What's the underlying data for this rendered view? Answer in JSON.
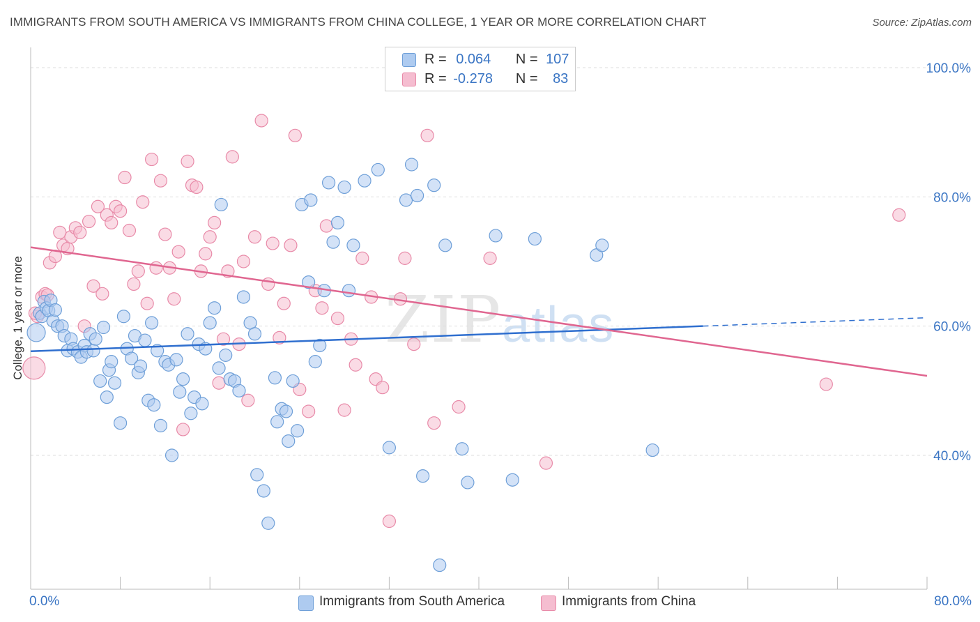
{
  "title": "IMMIGRANTS FROM SOUTH AMERICA VS IMMIGRANTS FROM CHINA COLLEGE, 1 YEAR OR MORE CORRELATION CHART",
  "source": "Source: ZipAtlas.com",
  "watermark": {
    "zip": "ZIP",
    "atlas": "atlas"
  },
  "colors": {
    "blue_fill": "#aecbf0",
    "blue_stroke": "#6e9fd8",
    "blue_line": "#2f6fcf",
    "pink_fill": "#f5bdd0",
    "pink_stroke": "#e88aa8",
    "pink_line": "#e06690",
    "axis_text": "#3a75c4",
    "grid": "#dddddd"
  },
  "legend_box": {
    "rows": [
      {
        "r_label": "R =",
        "r_value": "0.064",
        "n_label": "N =",
        "n_value": "107",
        "color": "#aecbf0"
      },
      {
        "r_label": "R =",
        "r_value": "-0.278",
        "n_label": "N =",
        "n_value": "83",
        "color": "#f5bdd0"
      }
    ]
  },
  "bottom_legend": [
    {
      "label": "Immigrants from South America",
      "color": "#aecbf0"
    },
    {
      "label": "Immigrants from China",
      "color": "#f5bdd0"
    }
  ],
  "chart_data": {
    "type": "scatter",
    "title": "IMMIGRANTS FROM SOUTH AMERICA VS IMMIGRANTS FROM CHINA COLLEGE, 1 YEAR OR MORE CORRELATION CHART",
    "xlabel": "",
    "ylabel": "College, 1 year or more",
    "xlim": [
      0,
      80
    ],
    "ylim": [
      20,
      100
    ],
    "x_tick_labels": [
      "0.0%",
      "80.0%"
    ],
    "y_ticks": [
      40,
      60,
      80,
      100
    ],
    "y_tick_labels": [
      "40.0%",
      "60.0%",
      "80.0%",
      "100.0%"
    ],
    "grid": true,
    "legend": "bottom",
    "series": [
      {
        "name": "Immigrants from South America",
        "color": "#aecbf0",
        "trend": {
          "x": [
            0,
            60
          ],
          "y": [
            56.1,
            60.0
          ],
          "dashed_extension_to": [
            80,
            61.3
          ]
        },
        "points": [
          [
            0.5,
            59.0
          ],
          [
            0.8,
            62.0
          ],
          [
            1.0,
            61.5
          ],
          [
            1.2,
            63.8
          ],
          [
            1.4,
            62.8
          ],
          [
            1.6,
            62.4
          ],
          [
            1.8,
            64.0
          ],
          [
            2.0,
            60.8
          ],
          [
            2.2,
            62.5
          ],
          [
            2.4,
            60.0
          ],
          [
            2.8,
            60.0
          ],
          [
            3.0,
            58.5
          ],
          [
            3.3,
            56.2
          ],
          [
            3.6,
            58.0
          ],
          [
            3.8,
            56.5
          ],
          [
            4.2,
            56.0
          ],
          [
            4.5,
            55.2
          ],
          [
            4.8,
            57.0
          ],
          [
            5.0,
            56.0
          ],
          [
            5.3,
            58.8
          ],
          [
            5.6,
            56.2
          ],
          [
            5.8,
            58.0
          ],
          [
            6.2,
            51.5
          ],
          [
            6.5,
            59.8
          ],
          [
            6.8,
            49.0
          ],
          [
            7.0,
            53.2
          ],
          [
            7.2,
            54.5
          ],
          [
            7.5,
            51.2
          ],
          [
            8.0,
            45.0
          ],
          [
            8.3,
            61.5
          ],
          [
            8.6,
            56.5
          ],
          [
            9.0,
            55.0
          ],
          [
            9.3,
            58.5
          ],
          [
            9.6,
            52.8
          ],
          [
            9.8,
            53.8
          ],
          [
            10.2,
            57.8
          ],
          [
            10.5,
            48.5
          ],
          [
            10.8,
            60.5
          ],
          [
            11.0,
            47.8
          ],
          [
            11.3,
            56.2
          ],
          [
            11.6,
            44.6
          ],
          [
            12.0,
            54.5
          ],
          [
            12.3,
            54.0
          ],
          [
            12.6,
            40.0
          ],
          [
            13.0,
            54.8
          ],
          [
            13.3,
            49.8
          ],
          [
            13.6,
            51.8
          ],
          [
            14.0,
            58.8
          ],
          [
            14.3,
            46.5
          ],
          [
            14.6,
            49.0
          ],
          [
            15.0,
            57.2
          ],
          [
            15.3,
            48.0
          ],
          [
            15.6,
            56.5
          ],
          [
            16.0,
            60.5
          ],
          [
            16.4,
            62.8
          ],
          [
            16.8,
            53.5
          ],
          [
            17.0,
            78.8
          ],
          [
            17.4,
            55.5
          ],
          [
            17.8,
            51.8
          ],
          [
            18.2,
            51.5
          ],
          [
            18.6,
            50.0
          ],
          [
            19.0,
            64.5
          ],
          [
            19.6,
            60.5
          ],
          [
            20.0,
            58.8
          ],
          [
            20.2,
            37.0
          ],
          [
            20.8,
            34.5
          ],
          [
            21.2,
            29.5
          ],
          [
            21.8,
            52.0
          ],
          [
            22.0,
            45.2
          ],
          [
            22.4,
            47.2
          ],
          [
            22.8,
            46.8
          ],
          [
            23.0,
            42.2
          ],
          [
            23.4,
            51.5
          ],
          [
            23.8,
            43.8
          ],
          [
            24.2,
            78.8
          ],
          [
            24.8,
            66.8
          ],
          [
            25.0,
            79.5
          ],
          [
            25.4,
            54.5
          ],
          [
            25.8,
            57.0
          ],
          [
            26.2,
            65.5
          ],
          [
            26.6,
            82.2
          ],
          [
            27.0,
            73.0
          ],
          [
            27.4,
            76.0
          ],
          [
            28.0,
            81.5
          ],
          [
            28.4,
            65.5
          ],
          [
            28.8,
            72.5
          ],
          [
            29.8,
            82.5
          ],
          [
            31.0,
            84.2
          ],
          [
            32.0,
            41.2
          ],
          [
            33.5,
            79.5
          ],
          [
            34.0,
            85.0
          ],
          [
            34.5,
            80.2
          ],
          [
            35.0,
            36.8
          ],
          [
            36.0,
            81.8
          ],
          [
            36.5,
            23.0
          ],
          [
            37.0,
            72.5
          ],
          [
            38.5,
            41.0
          ],
          [
            39.0,
            35.8
          ],
          [
            41.5,
            74.0
          ],
          [
            43.0,
            36.2
          ],
          [
            45.0,
            73.5
          ],
          [
            50.5,
            71.0
          ],
          [
            51.0,
            72.5
          ],
          [
            55.5,
            40.8
          ]
        ]
      },
      {
        "name": "Immigrants from China",
        "color": "#f5bdd0",
        "trend": {
          "x": [
            0,
            80
          ],
          "y": [
            72.2,
            52.3
          ]
        },
        "points": [
          [
            0.3,
            53.5
          ],
          [
            0.6,
            61.5
          ],
          [
            1.0,
            64.5
          ],
          [
            1.3,
            65.0
          ],
          [
            1.7,
            69.8
          ],
          [
            2.2,
            70.8
          ],
          [
            2.6,
            74.5
          ],
          [
            2.9,
            72.5
          ],
          [
            3.3,
            72.0
          ],
          [
            3.6,
            73.8
          ],
          [
            4.0,
            75.2
          ],
          [
            4.4,
            74.5
          ],
          [
            4.8,
            60.0
          ],
          [
            5.2,
            76.2
          ],
          [
            5.6,
            66.2
          ],
          [
            6.0,
            78.5
          ],
          [
            6.4,
            65.0
          ],
          [
            6.8,
            77.2
          ],
          [
            7.2,
            76.0
          ],
          [
            7.6,
            78.5
          ],
          [
            8.0,
            77.8
          ],
          [
            8.4,
            83.0
          ],
          [
            8.8,
            74.8
          ],
          [
            9.2,
            66.5
          ],
          [
            9.6,
            68.5
          ],
          [
            10.0,
            79.2
          ],
          [
            10.4,
            63.5
          ],
          [
            10.8,
            85.8
          ],
          [
            11.2,
            69.0
          ],
          [
            11.6,
            82.5
          ],
          [
            12.0,
            74.2
          ],
          [
            12.4,
            69.0
          ],
          [
            12.8,
            64.2
          ],
          [
            13.2,
            71.5
          ],
          [
            13.6,
            44.0
          ],
          [
            14.0,
            85.5
          ],
          [
            14.4,
            81.8
          ],
          [
            14.8,
            81.5
          ],
          [
            15.2,
            68.5
          ],
          [
            15.6,
            71.2
          ],
          [
            16.0,
            73.8
          ],
          [
            16.4,
            76.0
          ],
          [
            16.8,
            51.2
          ],
          [
            17.2,
            58.0
          ],
          [
            17.6,
            68.5
          ],
          [
            18.0,
            86.2
          ],
          [
            18.6,
            57.2
          ],
          [
            19.0,
            70.0
          ],
          [
            19.4,
            48.5
          ],
          [
            20.0,
            73.8
          ],
          [
            20.6,
            91.8
          ],
          [
            21.2,
            66.5
          ],
          [
            21.6,
            72.8
          ],
          [
            22.2,
            58.2
          ],
          [
            22.6,
            63.5
          ],
          [
            23.2,
            72.5
          ],
          [
            23.6,
            89.5
          ],
          [
            24.0,
            50.2
          ],
          [
            24.8,
            46.8
          ],
          [
            25.4,
            65.5
          ],
          [
            26.0,
            62.8
          ],
          [
            26.4,
            75.5
          ],
          [
            27.4,
            61.2
          ],
          [
            28.0,
            47.0
          ],
          [
            28.6,
            58.0
          ],
          [
            29.0,
            54.0
          ],
          [
            29.6,
            70.5
          ],
          [
            30.4,
            64.5
          ],
          [
            30.8,
            51.8
          ],
          [
            31.4,
            50.5
          ],
          [
            32.0,
            29.8
          ],
          [
            33.0,
            64.2
          ],
          [
            33.4,
            70.5
          ],
          [
            34.2,
            57.2
          ],
          [
            35.4,
            89.5
          ],
          [
            36.0,
            45.0
          ],
          [
            38.2,
            47.5
          ],
          [
            41.0,
            70.5
          ],
          [
            46.0,
            38.8
          ],
          [
            71.0,
            51.0
          ],
          [
            77.5,
            77.2
          ],
          [
            0.4,
            62.0
          ],
          [
            1.5,
            64.8
          ]
        ]
      }
    ]
  }
}
